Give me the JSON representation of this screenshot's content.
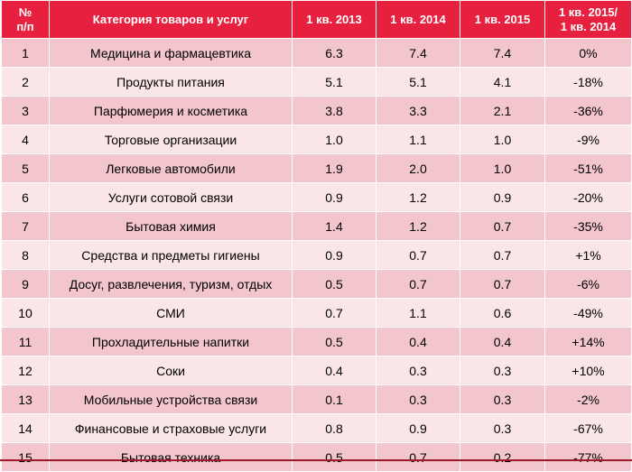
{
  "table": {
    "headers": {
      "num": "№\nп/п",
      "category": "Категория товаров и услуг",
      "q2013": "1 кв. 2013",
      "q2014": "1 кв. 2014",
      "q2015": "1 кв. 2015",
      "change": "1 кв. 2015/\n1 кв. 2014"
    },
    "rows": [
      {
        "num": "1",
        "category": "Медицина и фармацевтика",
        "q2013": "6.3",
        "q2014": "7.4",
        "q2015": "7.4",
        "change": "0%"
      },
      {
        "num": "2",
        "category": "Продукты питания",
        "q2013": "5.1",
        "q2014": "5.1",
        "q2015": "4.1",
        "change": "-18%"
      },
      {
        "num": "3",
        "category": "Парфюмерия и косметика",
        "q2013": "3.8",
        "q2014": "3.3",
        "q2015": "2.1",
        "change": "-36%"
      },
      {
        "num": "4",
        "category": "Торговые организации",
        "q2013": "1.0",
        "q2014": "1.1",
        "q2015": "1.0",
        "change": "-9%"
      },
      {
        "num": "5",
        "category": "Легковые автомобили",
        "q2013": "1.9",
        "q2014": "2.0",
        "q2015": "1.0",
        "change": "-51%"
      },
      {
        "num": "6",
        "category": "Услуги сотовой связи",
        "q2013": "0.9",
        "q2014": "1.2",
        "q2015": "0.9",
        "change": "-20%"
      },
      {
        "num": "7",
        "category": "Бытовая химия",
        "q2013": "1.4",
        "q2014": "1.2",
        "q2015": "0.7",
        "change": "-35%"
      },
      {
        "num": "8",
        "category": "Средства и предметы гигиены",
        "q2013": "0.9",
        "q2014": "0.7",
        "q2015": "0.7",
        "change": "+1%"
      },
      {
        "num": "9",
        "category": "Досуг, развлечения, туризм, отдых",
        "q2013": "0.5",
        "q2014": "0.7",
        "q2015": "0.7",
        "change": "-6%"
      },
      {
        "num": "10",
        "category": "СМИ",
        "q2013": "0.7",
        "q2014": "1.1",
        "q2015": "0.6",
        "change": "-49%"
      },
      {
        "num": "11",
        "category": "Прохладительные напитки",
        "q2013": "0.5",
        "q2014": "0.4",
        "q2015": "0.4",
        "change": "+14%"
      },
      {
        "num": "12",
        "category": "Соки",
        "q2013": "0.4",
        "q2014": "0.3",
        "q2015": "0.3",
        "change": "+10%"
      },
      {
        "num": "13",
        "category": "Мобильные устройства связи",
        "q2013": "0.1",
        "q2014": "0.3",
        "q2015": "0.3",
        "change": "-2%"
      },
      {
        "num": "14",
        "category": "Финансовые и страховые услуги",
        "q2013": "0.8",
        "q2014": "0.9",
        "q2015": "0.3",
        "change": "-67%"
      },
      {
        "num": "15",
        "category": "Бытовая техника",
        "q2013": "0.5",
        "q2014": "0.7",
        "q2015": "0.2",
        "change": "-77%"
      }
    ]
  },
  "colors": {
    "header_bg": "#e8203f",
    "row_odd": "#f2c6cc",
    "row_even": "#fae5e8"
  }
}
